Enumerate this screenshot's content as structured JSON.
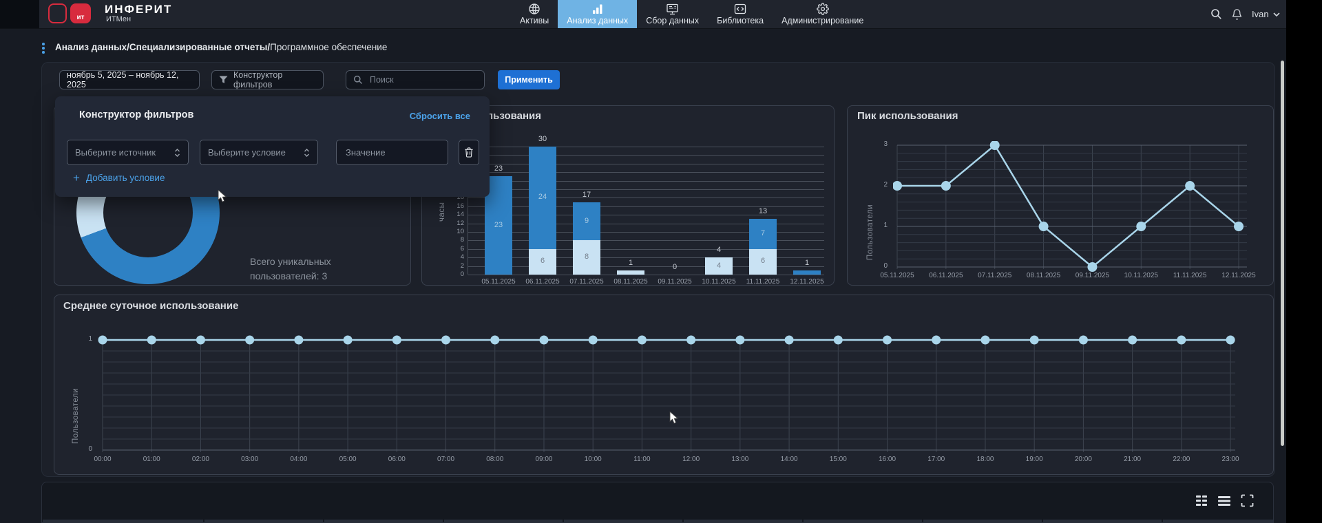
{
  "header": {
    "brand": {
      "logo_text": "ит",
      "title": "ИНФЕРИТ",
      "subtitle": "ИТМен"
    },
    "nav": [
      {
        "label": "Активы",
        "icon": "assets-icon",
        "active": false
      },
      {
        "label": "Анализ данных",
        "icon": "analytics-icon",
        "active": true
      },
      {
        "label": "Сбор данных",
        "icon": "data-collection-icon",
        "active": false
      },
      {
        "label": "Библиотека",
        "icon": "library-icon",
        "active": false
      },
      {
        "label": "Администрирование",
        "icon": "admin-icon",
        "active": false
      }
    ],
    "user": {
      "name": "Ivan"
    }
  },
  "breadcrumb": {
    "bold": "Анализ данных/Специализированные отчеты/",
    "current": "Программное обеспечение"
  },
  "filters": {
    "date_range": "ноябрь 5, 2025 – ноябрь 12, 2025",
    "builder_button": "Конструктор фильтров",
    "search_placeholder": "Поиск",
    "apply_label": "Применить",
    "panel": {
      "title": "Конструктор фильтров",
      "reset_label": "Сбросить все",
      "source_placeholder": "Выберите источник",
      "condition_placeholder": "Выберите условие",
      "value_placeholder": "Значение",
      "add_label": "Добавить условие"
    }
  },
  "colors": {
    "accent_blue": "#1e70d4",
    "link_blue": "#4ba2e9",
    "nav_active": "#6fb3e4",
    "bar_dark": "#2e81c4",
    "bar_light": "#c9e2f3",
    "line": "#a9d5ea",
    "brand_red": "#d82b3e"
  },
  "chart_data": [
    {
      "type": "pie",
      "donut": true,
      "rotation": 318,
      "slices": [
        {
          "name": "dark",
          "value": 81,
          "color": "#2e81c4"
        },
        {
          "name": "light",
          "value": 19,
          "color": "#c9e2f3"
        }
      ],
      "annotation": "Всего уникальных пользователей: 3",
      "annotation_lines": [
        "Всего уникальных",
        "пользователей: 3"
      ]
    },
    {
      "type": "bar",
      "stacked": true,
      "title": "Часы использования",
      "ylabel": "часы",
      "ylim": [
        0,
        30
      ],
      "ytick_step": 2,
      "grid": true,
      "categories": [
        "05.11.2025",
        "06.11.2025",
        "07.11.2025",
        "08.11.2025",
        "09.11.2025",
        "10.11.2025",
        "11.11.2025",
        "12.11.2025"
      ],
      "series": [
        {
          "name": "bottom",
          "color": "#c9e2f3",
          "values": [
            0,
            6,
            8,
            1,
            0,
            4,
            6,
            0
          ]
        },
        {
          "name": "top",
          "color": "#2e81c4",
          "values": [
            23,
            24,
            9,
            0,
            0,
            0,
            7,
            1
          ]
        }
      ],
      "totals": [
        23,
        30,
        17,
        1,
        0,
        4,
        13,
        1
      ]
    },
    {
      "type": "line",
      "title": "Пик использования",
      "ylabel": "Пользователи",
      "ylim": [
        0,
        3
      ],
      "grid": true,
      "x": [
        "05.11.2025",
        "06.11.2025",
        "07.11.2025",
        "08.11.2025",
        "09.11.2025",
        "10.11.2025",
        "11.11.2025",
        "12.11.2025"
      ],
      "values": [
        2,
        2,
        3,
        1,
        0,
        1,
        2,
        1
      ]
    },
    {
      "type": "line",
      "title": "Среднее суточное использование",
      "ylabel": "Пользователи",
      "ylim": [
        0,
        1
      ],
      "grid": true,
      "x": [
        "00:00",
        "01:00",
        "02:00",
        "03:00",
        "04:00",
        "05:00",
        "06:00",
        "07:00",
        "08:00",
        "09:00",
        "10:00",
        "11:00",
        "12:00",
        "13:00",
        "14:00",
        "15:00",
        "16:00",
        "17:00",
        "18:00",
        "19:00",
        "20:00",
        "21:00",
        "22:00",
        "23:00"
      ],
      "values": [
        1,
        1,
        1,
        1,
        1,
        1,
        1,
        1,
        1,
        1,
        1,
        1,
        1,
        1,
        1,
        1,
        1,
        1,
        1,
        1,
        1,
        1,
        1,
        1
      ]
    }
  ],
  "bottom": {
    "view_icons": [
      {
        "name": "grid-view-icon"
      },
      {
        "name": "list-view-icon"
      },
      {
        "name": "fullscreen-icon"
      }
    ],
    "table": {
      "visible_columns": 10
    }
  }
}
